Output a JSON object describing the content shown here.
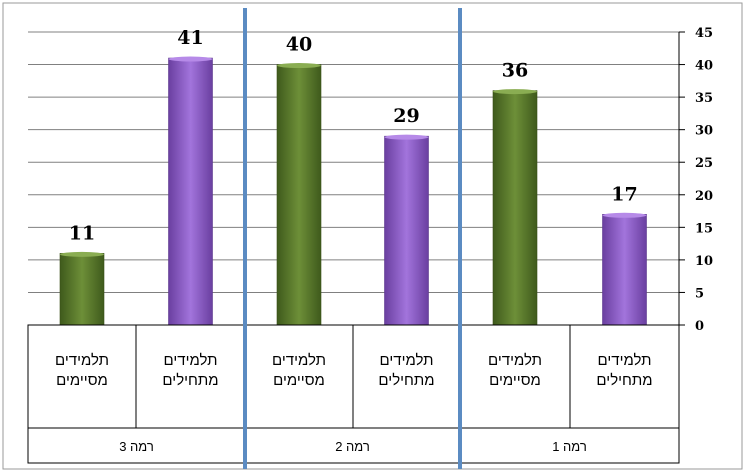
{
  "chart_data": {
    "type": "bar",
    "ylim": [
      0,
      45
    ],
    "yticks": [
      0,
      5,
      10,
      15,
      20,
      25,
      30,
      35,
      40,
      45
    ],
    "categories": [
      {
        "line1": "תלמידים",
        "line2": "מסיימים"
      },
      {
        "line1": "תלמידים",
        "line2": "מתחילים"
      },
      {
        "line1": "תלמידים",
        "line2": "מסיימים"
      },
      {
        "line1": "תלמידים",
        "line2": "מתחילים"
      },
      {
        "line1": "תלמידים",
        "line2": "מסיימים"
      },
      {
        "line1": "תלמידים",
        "line2": "מתחילים"
      }
    ],
    "values": [
      11,
      41,
      40,
      29,
      36,
      17
    ],
    "groups": [
      "רמה 3",
      "רמה 2",
      "רמה 1"
    ],
    "colors": {
      "green": "#5e7d2e",
      "purple": "#8f5ac8",
      "divider": "#5b8bc2",
      "grid": "#808080"
    },
    "bar_colors": [
      "green",
      "purple",
      "green",
      "purple",
      "green",
      "purple"
    ]
  }
}
